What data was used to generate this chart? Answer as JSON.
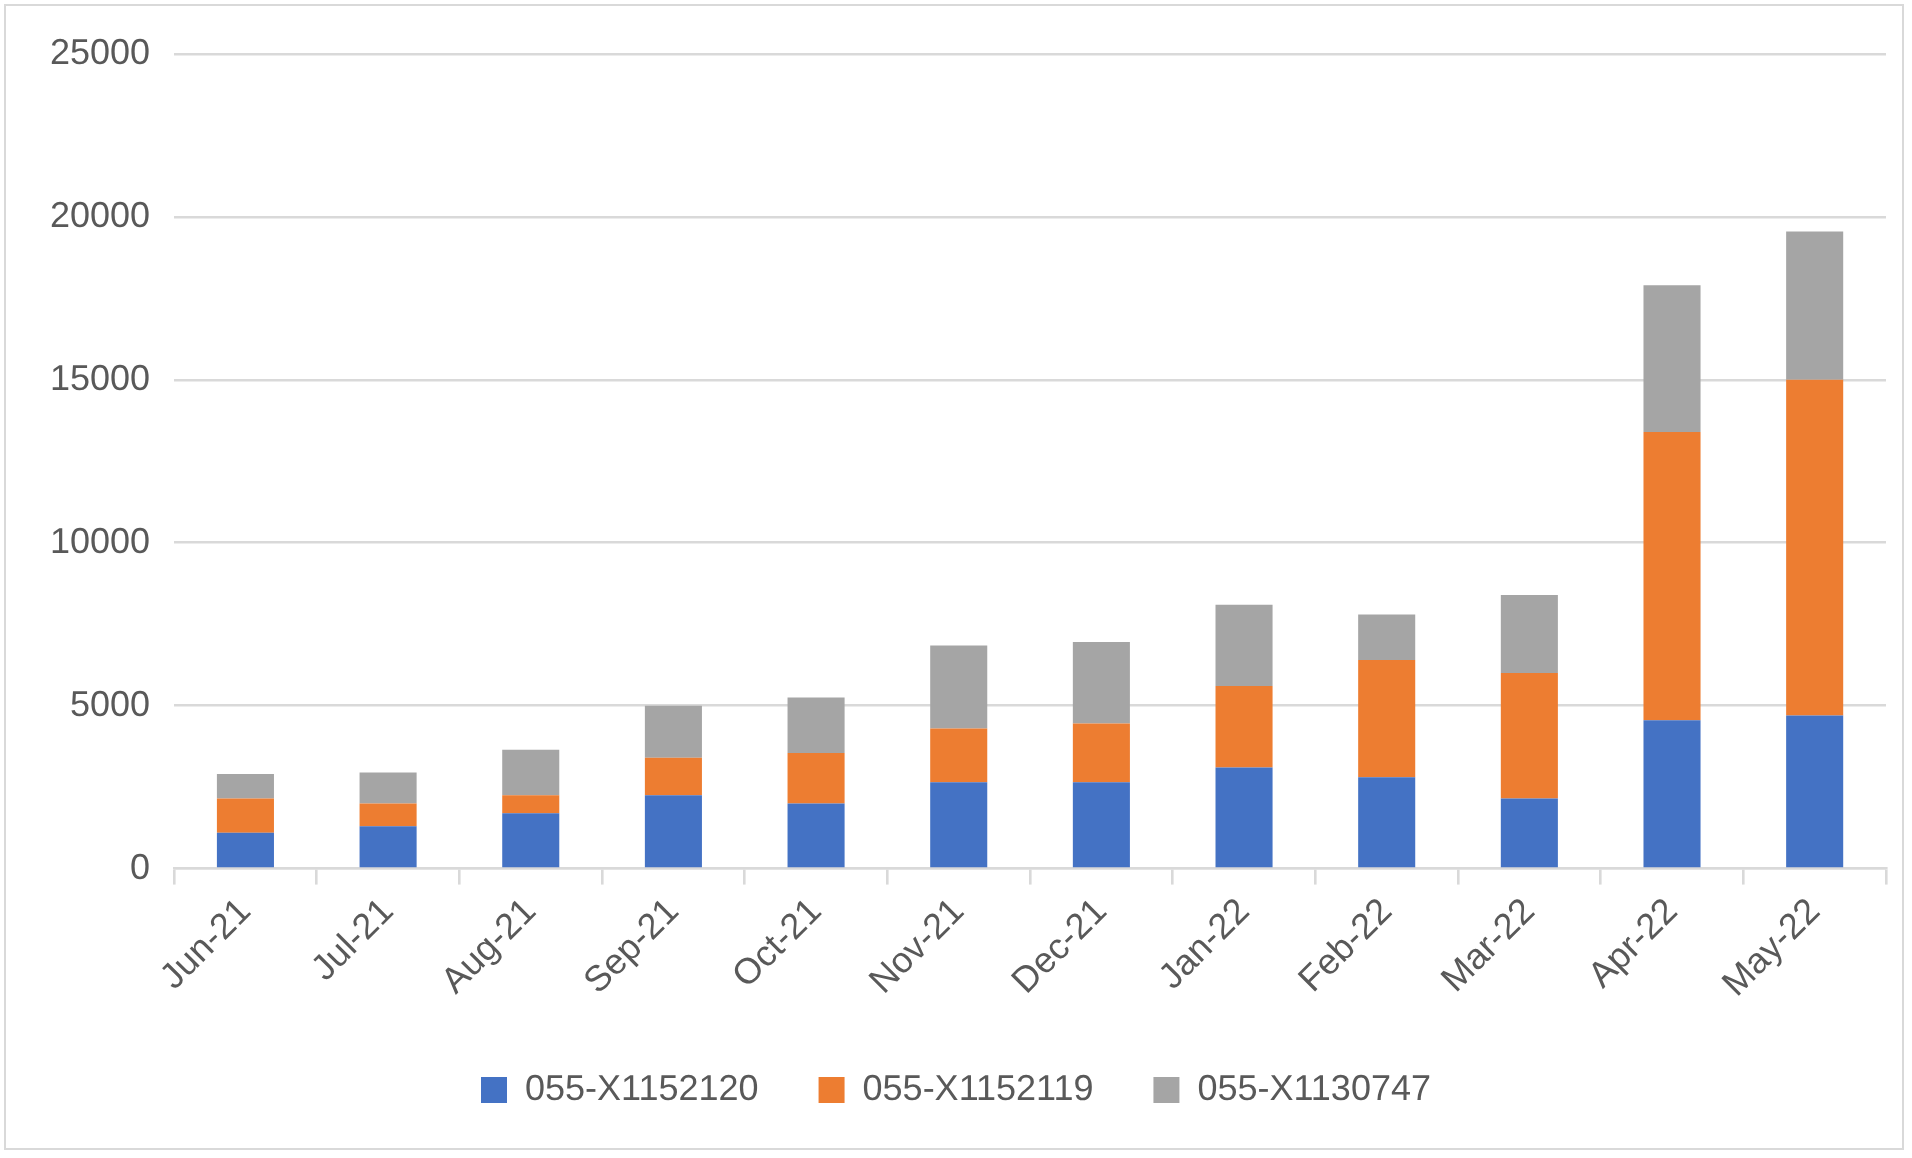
{
  "chart_data": {
    "type": "bar",
    "stacked": true,
    "categories": [
      "Jun-21",
      "Jul-21",
      "Aug-21",
      "Sep-21",
      "Oct-21",
      "Nov-21",
      "Dec-21",
      "Jan-22",
      "Feb-22",
      "Mar-22",
      "Apr-22",
      "May-22"
    ],
    "series": [
      {
        "name": "055-X1152120",
        "color": "#4472c4",
        "values": [
          1100,
          1300,
          1700,
          2250,
          2000,
          2650,
          2650,
          3100,
          2800,
          2150,
          4550,
          4700
        ]
      },
      {
        "name": "055-X1152119",
        "color": "#ed7d31",
        "values": [
          1050,
          700,
          550,
          1150,
          1550,
          1650,
          1800,
          2500,
          3600,
          3850,
          8850,
          10300
        ]
      },
      {
        "name": "055-X1130747",
        "color": "#a5a5a5",
        "values": [
          750,
          950,
          1400,
          1600,
          1700,
          2550,
          2500,
          2500,
          1400,
          2400,
          4500,
          4550
        ]
      }
    ],
    "ylim": [
      0,
      25000
    ],
    "yticks": [
      0,
      5000,
      10000,
      15000,
      20000,
      25000
    ],
    "grid": "y",
    "legend": "bottom"
  }
}
